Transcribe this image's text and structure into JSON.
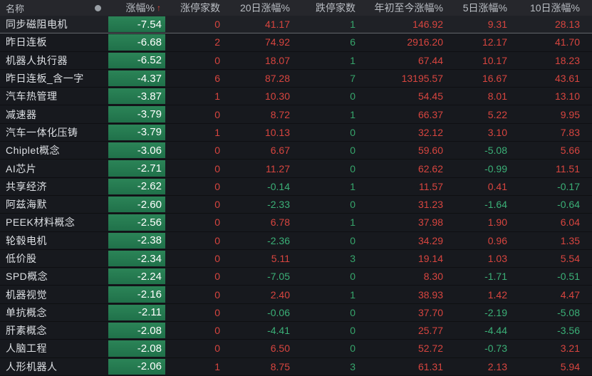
{
  "header": {
    "name_label": "名称",
    "dot_icon": "circle",
    "sort_arrow": "↑",
    "columns": [
      {
        "label": "涨幅%",
        "sorted": true
      },
      {
        "label": "涨停家数"
      },
      {
        "label": "20日涨幅%"
      },
      {
        "label": "跌停家数"
      },
      {
        "label": "年初至今涨幅%"
      },
      {
        "label": "5日涨幅%"
      },
      {
        "label": "10日涨幅%"
      }
    ]
  },
  "colors": {
    "positive_red": "#d8453f",
    "negative_green": "#3bb077",
    "limit_up_red": "#d8453f",
    "limit_down_green": "#36a56b",
    "change_pill_green": "#27794f",
    "header_bg": "#26272c",
    "row_bg": "#17191e",
    "selected_row_bg": "#1f2126"
  },
  "rows": [
    {
      "name": "同步磁阻电机",
      "chg": "-7.54",
      "limit_up": "0",
      "d20": "41.17",
      "limit_down": "1",
      "ytd": "146.92",
      "d5": "9.31",
      "d10": "28.13",
      "selected": true
    },
    {
      "name": "昨日连板",
      "chg": "-6.68",
      "limit_up": "2",
      "d20": "74.92",
      "limit_down": "6",
      "ytd": "2916.20",
      "d5": "12.17",
      "d10": "41.70"
    },
    {
      "name": "机器人执行器",
      "chg": "-6.52",
      "limit_up": "0",
      "d20": "18.07",
      "limit_down": "1",
      "ytd": "67.44",
      "d5": "10.17",
      "d10": "18.23"
    },
    {
      "name": "昨日连板_含一字",
      "chg": "-4.37",
      "limit_up": "6",
      "d20": "87.28",
      "limit_down": "7",
      "ytd": "13195.57",
      "d5": "16.67",
      "d10": "43.61"
    },
    {
      "name": "汽车热管理",
      "chg": "-3.87",
      "limit_up": "1",
      "d20": "10.30",
      "limit_down": "0",
      "ytd": "54.45",
      "d5": "8.01",
      "d10": "13.10"
    },
    {
      "name": "减速器",
      "chg": "-3.79",
      "limit_up": "0",
      "d20": "8.72",
      "limit_down": "1",
      "ytd": "66.37",
      "d5": "5.22",
      "d10": "9.95"
    },
    {
      "name": "汽车一体化压铸",
      "chg": "-3.79",
      "limit_up": "1",
      "d20": "10.13",
      "limit_down": "0",
      "ytd": "32.12",
      "d5": "3.10",
      "d10": "7.83"
    },
    {
      "name": "Chiplet概念",
      "chg": "-3.06",
      "limit_up": "0",
      "d20": "6.67",
      "limit_down": "0",
      "ytd": "59.60",
      "d5": "-5.08",
      "d10": "5.66"
    },
    {
      "name": "AI芯片",
      "chg": "-2.71",
      "limit_up": "0",
      "d20": "11.27",
      "limit_down": "0",
      "ytd": "62.62",
      "d5": "-0.99",
      "d10": "11.51"
    },
    {
      "name": "共享经济",
      "chg": "-2.62",
      "limit_up": "0",
      "d20": "-0.14",
      "limit_down": "1",
      "ytd": "11.57",
      "d5": "0.41",
      "d10": "-0.17"
    },
    {
      "name": "阿兹海默",
      "chg": "-2.60",
      "limit_up": "0",
      "d20": "-2.33",
      "limit_down": "0",
      "ytd": "31.23",
      "d5": "-1.64",
      "d10": "-0.64"
    },
    {
      "name": "PEEK材料概念",
      "chg": "-2.56",
      "limit_up": "0",
      "d20": "6.78",
      "limit_down": "1",
      "ytd": "37.98",
      "d5": "1.90",
      "d10": "6.04"
    },
    {
      "name": "轮毂电机",
      "chg": "-2.38",
      "limit_up": "0",
      "d20": "-2.36",
      "limit_down": "0",
      "ytd": "34.29",
      "d5": "0.96",
      "d10": "1.35"
    },
    {
      "name": "低价股",
      "chg": "-2.34",
      "limit_up": "0",
      "d20": "5.11",
      "limit_down": "3",
      "ytd": "19.14",
      "d5": "1.03",
      "d10": "5.54"
    },
    {
      "name": "SPD概念",
      "chg": "-2.24",
      "limit_up": "0",
      "d20": "-7.05",
      "limit_down": "0",
      "ytd": "8.30",
      "d5": "-1.71",
      "d10": "-0.51"
    },
    {
      "name": "机器视觉",
      "chg": "-2.16",
      "limit_up": "0",
      "d20": "2.40",
      "limit_down": "1",
      "ytd": "38.93",
      "d5": "1.42",
      "d10": "4.47"
    },
    {
      "name": "单抗概念",
      "chg": "-2.11",
      "limit_up": "0",
      "d20": "-0.06",
      "limit_down": "0",
      "ytd": "37.70",
      "d5": "-2.19",
      "d10": "-5.08"
    },
    {
      "name": "肝素概念",
      "chg": "-2.08",
      "limit_up": "0",
      "d20": "-4.41",
      "limit_down": "0",
      "ytd": "25.77",
      "d5": "-4.44",
      "d10": "-3.56"
    },
    {
      "name": "人脑工程",
      "chg": "-2.08",
      "limit_up": "0",
      "d20": "6.50",
      "limit_down": "0",
      "ytd": "52.72",
      "d5": "-0.73",
      "d10": "3.21"
    },
    {
      "name": "人形机器人",
      "chg": "-2.06",
      "limit_up": "1",
      "d20": "8.75",
      "limit_down": "3",
      "ytd": "61.31",
      "d5": "2.13",
      "d10": "5.94"
    }
  ]
}
